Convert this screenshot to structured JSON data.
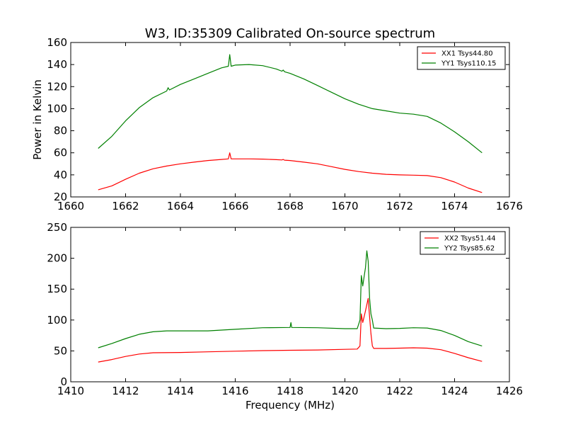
{
  "chart_data": [
    {
      "type": "line",
      "title": "W3, ID:35309 Calibrated On-source spectrum",
      "xlabel": "",
      "ylabel": "Power in Kelvin",
      "xlim": [
        1660,
        1676
      ],
      "ylim": [
        20,
        160
      ],
      "xticks": [
        1660,
        1662,
        1664,
        1666,
        1668,
        1670,
        1672,
        1674,
        1676
      ],
      "yticks": [
        20,
        40,
        60,
        80,
        100,
        120,
        140,
        160
      ],
      "legend_position": "top-right",
      "series": [
        {
          "name": "XX1 Tsys44.80",
          "color": "#ff0000",
          "points": [
            [
              1661.0,
              26.5
            ],
            [
              1661.5,
              30
            ],
            [
              1662.0,
              36
            ],
            [
              1662.5,
              41.5
            ],
            [
              1663.0,
              45.5
            ],
            [
              1663.5,
              48
            ],
            [
              1664.0,
              50
            ],
            [
              1664.5,
              51.5
            ],
            [
              1665.0,
              53
            ],
            [
              1665.5,
              54
            ],
            [
              1665.75,
              54.5
            ],
            [
              1665.8,
              60
            ],
            [
              1665.85,
              54.5
            ],
            [
              1666.0,
              54.5
            ],
            [
              1666.5,
              54.5
            ],
            [
              1667.0,
              54.3
            ],
            [
              1667.5,
              53.8
            ],
            [
              1667.7,
              53.5
            ],
            [
              1667.75,
              54
            ],
            [
              1667.8,
              53.3
            ],
            [
              1668.0,
              53
            ],
            [
              1668.5,
              51.5
            ],
            [
              1669.0,
              50
            ],
            [
              1669.5,
              47.5
            ],
            [
              1670.0,
              45
            ],
            [
              1670.5,
              43
            ],
            [
              1671.0,
              41.5
            ],
            [
              1671.5,
              40.5
            ],
            [
              1672.0,
              40
            ],
            [
              1672.5,
              39.7
            ],
            [
              1673.0,
              39.3
            ],
            [
              1673.5,
              37.5
            ],
            [
              1674.0,
              33.5
            ],
            [
              1674.5,
              28
            ],
            [
              1675.0,
              24
            ]
          ]
        },
        {
          "name": "YY1 Tsys110.15",
          "color": "#008000",
          "points": [
            [
              1661.0,
              64
            ],
            [
              1661.5,
              75
            ],
            [
              1662.0,
              89
            ],
            [
              1662.5,
              101
            ],
            [
              1663.0,
              110
            ],
            [
              1663.5,
              116
            ],
            [
              1663.55,
              119
            ],
            [
              1663.6,
              117
            ],
            [
              1664.0,
              122
            ],
            [
              1664.5,
              127
            ],
            [
              1665.0,
              132
            ],
            [
              1665.5,
              137
            ],
            [
              1665.75,
              138.5
            ],
            [
              1665.8,
              149
            ],
            [
              1665.85,
              138.5
            ],
            [
              1666.0,
              139.5
            ],
            [
              1666.5,
              140
            ],
            [
              1667.0,
              139
            ],
            [
              1667.5,
              136
            ],
            [
              1667.7,
              134
            ],
            [
              1667.75,
              135
            ],
            [
              1667.8,
              133.5
            ],
            [
              1668.0,
              132
            ],
            [
              1668.5,
              127
            ],
            [
              1669.0,
              121
            ],
            [
              1669.5,
              115
            ],
            [
              1670.0,
              109
            ],
            [
              1670.5,
              104
            ],
            [
              1671.0,
              100
            ],
            [
              1671.5,
              98
            ],
            [
              1672.0,
              96
            ],
            [
              1672.5,
              95
            ],
            [
              1673.0,
              93
            ],
            [
              1673.5,
              87
            ],
            [
              1674.0,
              79
            ],
            [
              1674.5,
              70
            ],
            [
              1675.0,
              60
            ]
          ]
        }
      ]
    },
    {
      "type": "line",
      "title": "",
      "xlabel": "Frequency (MHz)",
      "ylabel": "",
      "xlim": [
        1410,
        1426
      ],
      "ylim": [
        0,
        250
      ],
      "xticks": [
        1410,
        1412,
        1414,
        1416,
        1418,
        1420,
        1422,
        1424,
        1426
      ],
      "yticks": [
        0,
        50,
        100,
        150,
        200,
        250
      ],
      "legend_position": "top-right",
      "series": [
        {
          "name": "XX2 Tsys51.44",
          "color": "#ff0000",
          "points": [
            [
              1411.0,
              32
            ],
            [
              1411.5,
              36
            ],
            [
              1412.0,
              41
            ],
            [
              1412.5,
              45
            ],
            [
              1413.0,
              47
            ],
            [
              1414.0,
              47.5
            ],
            [
              1415.0,
              48.5
            ],
            [
              1416.0,
              49.5
            ],
            [
              1417.0,
              50.5
            ],
            [
              1418.0,
              51
            ],
            [
              1419.0,
              51.5
            ],
            [
              1420.0,
              52.5
            ],
            [
              1420.45,
              53
            ],
            [
              1420.55,
              58
            ],
            [
              1420.6,
              110
            ],
            [
              1420.65,
              96
            ],
            [
              1420.7,
              105
            ],
            [
              1420.75,
              115
            ],
            [
              1420.8,
              125
            ],
            [
              1420.85,
              135
            ],
            [
              1420.9,
              105
            ],
            [
              1420.95,
              78
            ],
            [
              1421.0,
              58
            ],
            [
              1421.05,
              54
            ],
            [
              1421.5,
              54
            ],
            [
              1422.0,
              54.5
            ],
            [
              1422.5,
              55
            ],
            [
              1423.0,
              54.5
            ],
            [
              1423.5,
              52
            ],
            [
              1424.0,
              46
            ],
            [
              1424.5,
              39
            ],
            [
              1425.0,
              33
            ]
          ]
        },
        {
          "name": "YY2 Tsys85.62",
          "color": "#008000",
          "points": [
            [
              1411.0,
              55
            ],
            [
              1411.5,
              62
            ],
            [
              1412.0,
              70
            ],
            [
              1412.5,
              77
            ],
            [
              1413.0,
              81
            ],
            [
              1413.5,
              82.5
            ],
            [
              1414.0,
              82.5
            ],
            [
              1415.0,
              82.5
            ],
            [
              1416.0,
              85
            ],
            [
              1417.0,
              87.5
            ],
            [
              1418.0,
              88
            ],
            [
              1418.03,
              96
            ],
            [
              1418.06,
              88
            ],
            [
              1419.0,
              87.5
            ],
            [
              1420.0,
              86
            ],
            [
              1420.45,
              86
            ],
            [
              1420.55,
              100
            ],
            [
              1420.6,
              172
            ],
            [
              1420.65,
              155
            ],
            [
              1420.7,
              170
            ],
            [
              1420.75,
              185
            ],
            [
              1420.8,
              212
            ],
            [
              1420.85,
              195
            ],
            [
              1420.9,
              135
            ],
            [
              1420.95,
              110
            ],
            [
              1421.0,
              100
            ],
            [
              1421.05,
              87
            ],
            [
              1421.5,
              86
            ],
            [
              1422.0,
              86.5
            ],
            [
              1422.5,
              87.5
            ],
            [
              1423.0,
              87
            ],
            [
              1423.5,
              83
            ],
            [
              1424.0,
              75
            ],
            [
              1424.5,
              65
            ],
            [
              1425.0,
              58
            ]
          ]
        }
      ]
    }
  ]
}
